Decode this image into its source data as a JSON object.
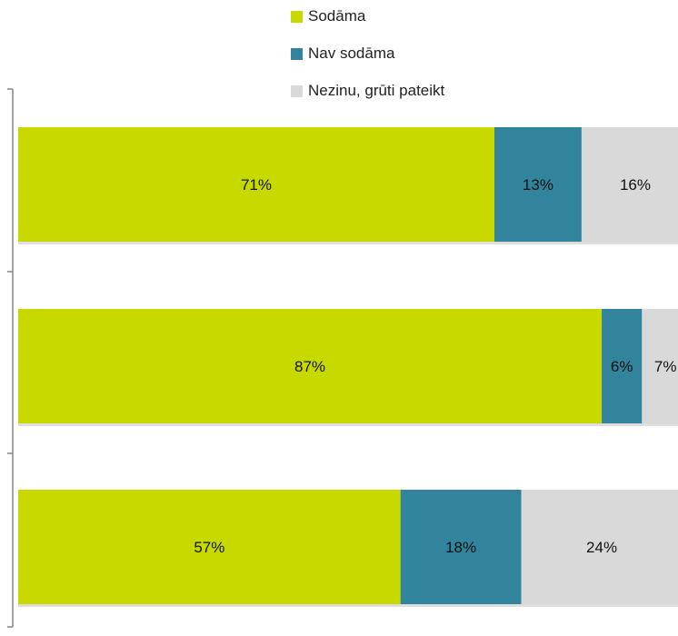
{
  "chart_data": {
    "type": "bar",
    "orientation": "horizontal",
    "stacked": true,
    "categories": [
      "",
      "",
      ""
    ],
    "series": [
      {
        "name": "Sodāma",
        "color": "#c8d900",
        "values": [
          71,
          87,
          57
        ],
        "labels": [
          "71%",
          "87%",
          "57%"
        ]
      },
      {
        "name": "Nav sodāma",
        "color": "#31849b",
        "values": [
          13,
          6,
          18
        ],
        "labels": [
          "13%",
          "6%",
          "18%"
        ]
      },
      {
        "name": "Nezinu, grūti pateikt",
        "color": "#d9d9d9",
        "values": [
          16,
          7,
          24
        ],
        "labels": [
          "16%",
          "7%",
          "24%"
        ]
      }
    ],
    "xlim": [
      0,
      100
    ],
    "legend_position": "top",
    "grid": false
  }
}
